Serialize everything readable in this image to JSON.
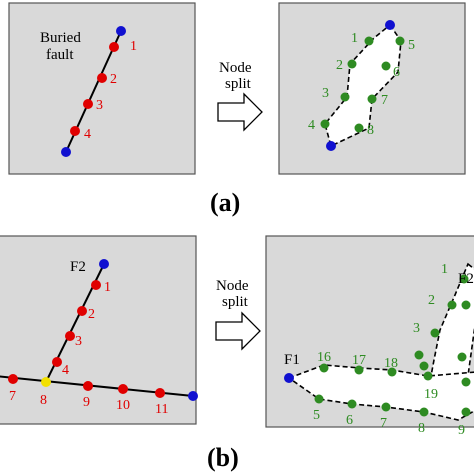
{
  "colors": {
    "panel_fill": "#d9d9d9",
    "panel_stroke": "#555555",
    "red_node": "#e00000",
    "green_node": "#2e8b22",
    "blue_node": "#1010d0",
    "yellow_node": "#f2e000",
    "crack_fill": "#ffffff"
  },
  "panel_a": {
    "caption": "(a)",
    "before_label_line1": "Buried",
    "before_label_line2": "fault",
    "arrow_label_line1": "Node",
    "arrow_label_line2": "split",
    "before_nodes": [
      "1",
      "2",
      "3",
      "4"
    ],
    "after_nodes": [
      "1",
      "2",
      "3",
      "4",
      "5",
      "6",
      "7",
      "8"
    ]
  },
  "panel_b": {
    "caption": "(b)",
    "fault2_label": "F2",
    "fault1_label": "F1",
    "arrow_label_line1": "Node",
    "arrow_label_line2": "split",
    "before_nodes": [
      "1",
      "2",
      "3",
      "4",
      "7",
      "8",
      "9",
      "10",
      "11"
    ],
    "after_nodes": [
      "1",
      "2",
      "3",
      "16",
      "17",
      "18",
      "19",
      "5",
      "6",
      "7",
      "8",
      "9"
    ],
    "after_fault2_label": "F2"
  }
}
